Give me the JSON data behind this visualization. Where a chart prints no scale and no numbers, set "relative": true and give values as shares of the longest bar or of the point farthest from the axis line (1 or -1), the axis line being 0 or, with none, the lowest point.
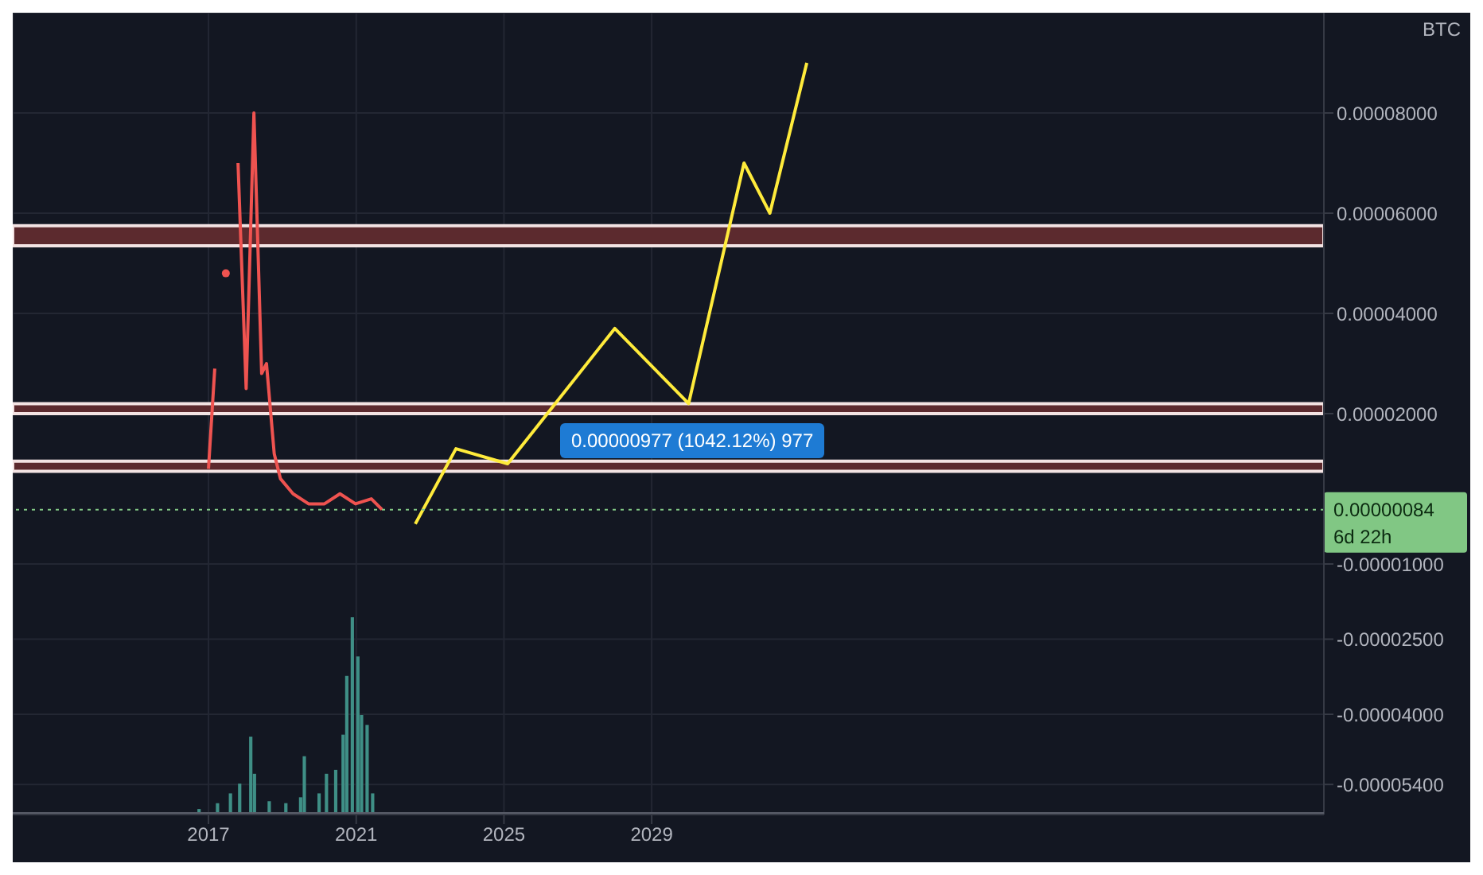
{
  "chart_data": [
    {
      "type": "line",
      "ylabel": "BTC",
      "marker": "none",
      "grid": true,
      "xlim": [
        2011.7,
        2047.2
      ],
      "xticks": [
        2017,
        2021,
        2025,
        2029
      ],
      "ylim": [
        -6e-05,
        0.0001
      ],
      "yticks": [
        {
          "value": 8e-05,
          "label": "0.00008000"
        },
        {
          "value": 6e-05,
          "label": "0.00006000"
        },
        {
          "value": 4e-05,
          "label": "0.00004000"
        },
        {
          "value": 2e-05,
          "label": "0.00002000"
        },
        {
          "value": -1e-05,
          "label": "-0.00001000"
        },
        {
          "value": -2.5e-05,
          "label": "-0.00002500"
        },
        {
          "value": -4e-05,
          "label": "-0.00004000"
        },
        {
          "value": -5.4e-05,
          "label": "-0.00005400"
        }
      ],
      "series": [
        {
          "color": "#ef5350",
          "x": [
            2017.0,
            2017.17,
            2017.3,
            2017.47,
            2017.59,
            2017.8,
            2018.02,
            2018.23,
            2018.44,
            2018.57,
            2018.78,
            2018.95,
            2019.29,
            2019.71,
            2020.14,
            2020.56,
            2020.98,
            2021.41,
            2021.7
          ],
          "values": [
            9e-06,
            2.9e-05,
            null,
            4.8e-05,
            null,
            7e-05,
            2.5e-05,
            8e-05,
            2.8e-05,
            3e-05,
            1.2e-05,
            7e-06,
            4e-06,
            2e-06,
            2e-06,
            4e-06,
            2e-06,
            3e-06,
            8.4e-07
          ]
        },
        {
          "color": "#ffeb3b",
          "x": [
            2022.6,
            2023.7,
            2025.1,
            2028.0,
            2030.0,
            2031.5,
            2032.2,
            2033.2
          ],
          "values": [
            -2e-06,
            1.3e-05,
            1e-05,
            3.7e-05,
            2.2e-05,
            7e-05,
            6e-05,
            9e-05
          ]
        }
      ],
      "bands": [
        {
          "axis": "y",
          "from": 8.5e-06,
          "to": 1.05e-05,
          "color": "#5c2a2e"
        },
        {
          "axis": "y",
          "from": 2e-05,
          "to": 2.2e-05,
          "color": "#5c2a2e"
        },
        {
          "axis": "y",
          "from": 5.35e-05,
          "to": 5.75e-05,
          "color": "#5c2a2e"
        }
      ],
      "ref_lines": [
        {
          "axis": "y",
          "value": 8.4e-07,
          "label": "0.00000084",
          "color": "#81c784",
          "line_style": "dotted"
        }
      ],
      "annotations": [
        "0.00000977 (1042.12%) 977",
        "6d 22h"
      ]
    },
    {
      "type": "bar",
      "relative": true,
      "color": "#3f8f86",
      "xlim": [
        2011.7,
        2047.2
      ],
      "x": [
        2016.75,
        2017.25,
        2017.6,
        2017.85,
        2018.15,
        2018.25,
        2018.65,
        2019.1,
        2019.5,
        2019.6,
        2020.0,
        2020.2,
        2020.45,
        2020.65,
        2020.75,
        2020.9,
        2021.05,
        2021.15,
        2021.3,
        2021.45
      ],
      "values": [
        0.02,
        0.05,
        0.1,
        0.15,
        0.39,
        0.2,
        0.06,
        0.05,
        0.08,
        0.29,
        0.1,
        0.2,
        0.22,
        0.4,
        0.7,
        1,
        0.8,
        0.5,
        0.45,
        0.1
      ]
    }
  ]
}
